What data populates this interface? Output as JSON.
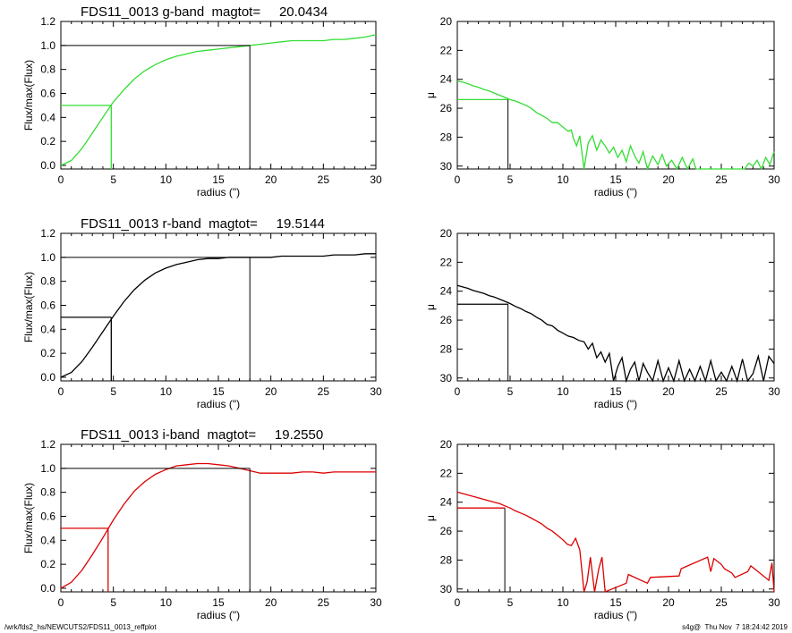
{
  "footer": {
    "path": "/wrk/fds2_hs/NEWCUTS2/FDS11_0013_reffplot",
    "stamp": "s4g@  Thu Nov  7 18:24:42 2019"
  },
  "chart_data": [
    {
      "type": "line",
      "title": "FDS11_0013 g-band  magtot=     20.0434",
      "xlabel": "radius (\")",
      "ylabel": "Flux/max(Flux)",
      "xlim": [
        0,
        30
      ],
      "ylim": [
        -0.03,
        1.2
      ],
      "xticks": [
        "0",
        "5",
        "10",
        "15",
        "20",
        "25",
        "30"
      ],
      "yticks": [
        "0.0",
        "0.2",
        "0.4",
        "0.6",
        "0.8",
        "1.0",
        "1.2"
      ],
      "color": "#33dd33",
      "reff": 4.8,
      "rtot": 18.0,
      "x": [
        0,
        1,
        2,
        3,
        4,
        5,
        6,
        7,
        8,
        9,
        10,
        11,
        12,
        13,
        14,
        15,
        16,
        17,
        18,
        19,
        20,
        21,
        22,
        23,
        24,
        25,
        26,
        27,
        28,
        29,
        30
      ],
      "y": [
        0.0,
        0.04,
        0.14,
        0.27,
        0.4,
        0.53,
        0.63,
        0.72,
        0.79,
        0.84,
        0.88,
        0.91,
        0.93,
        0.95,
        0.96,
        0.97,
        0.98,
        0.99,
        1.0,
        1.01,
        1.02,
        1.03,
        1.04,
        1.04,
        1.04,
        1.04,
        1.05,
        1.05,
        1.06,
        1.07,
        1.09
      ]
    },
    {
      "type": "line",
      "title": "",
      "xlabel": "radius (\")",
      "ylabel": "μ",
      "xlim": [
        0,
        30
      ],
      "ylim": [
        20,
        30.2
      ],
      "y_reversed": true,
      "xticks": [
        "0",
        "5",
        "10",
        "15",
        "20",
        "25",
        "30"
      ],
      "yticks": [
        "20",
        "22",
        "24",
        "26",
        "28",
        "30"
      ],
      "color": "#33dd33",
      "reff": 4.8,
      "mu_eff": 25.4,
      "x": [
        0,
        0.5,
        1,
        1.5,
        2,
        2.5,
        3,
        3.5,
        4,
        4.5,
        5,
        5.5,
        6,
        6.5,
        7,
        7.5,
        8,
        8.5,
        9,
        9.5,
        10,
        10.5,
        10.8,
        11,
        11.3,
        11.6,
        12,
        12.4,
        12.8,
        13.2,
        13.6,
        14,
        14.4,
        14.8,
        15.2,
        15.6,
        16,
        16.4,
        16.8,
        17.2,
        17.6,
        18,
        18.5,
        19,
        19.4,
        19.8,
        20.3,
        20.8,
        21.3,
        21.8,
        22.3,
        22.6,
        27.2,
        27.6,
        28,
        28.4,
        28.8,
        29.2,
        29.6,
        30
      ],
      "y": [
        24.1,
        24.2,
        24.3,
        24.45,
        24.55,
        24.7,
        24.8,
        24.95,
        25.1,
        25.25,
        25.4,
        25.5,
        25.65,
        25.8,
        26.0,
        26.3,
        26.5,
        26.7,
        27.0,
        27.0,
        27.3,
        27.6,
        27.5,
        28.1,
        28.6,
        27.9,
        30.2,
        28.4,
        27.9,
        28.9,
        28.2,
        28.6,
        29.1,
        28.7,
        29.4,
        28.9,
        29.7,
        28.6,
        29.3,
        29.8,
        29.0,
        30.2,
        29.3,
        29.9,
        29.2,
        30.0,
        29.6,
        30.2,
        29.4,
        30.2,
        29.5,
        30.2,
        30.2,
        29.8,
        30.0,
        29.6,
        30.2,
        29.4,
        29.9,
        29.0
      ]
    },
    {
      "type": "line",
      "title": "FDS11_0013 r-band  magtot=     19.5144",
      "xlabel": "radius (\")",
      "ylabel": "Flux/max(Flux)",
      "xlim": [
        0,
        30
      ],
      "ylim": [
        -0.03,
        1.2
      ],
      "xticks": [
        "0",
        "5",
        "10",
        "15",
        "20",
        "25",
        "30"
      ],
      "yticks": [
        "0.0",
        "0.2",
        "0.4",
        "0.6",
        "0.8",
        "1.0",
        "1.2"
      ],
      "color": "#000000",
      "reff": 4.8,
      "rtot": 18.0,
      "x": [
        0,
        1,
        2,
        3,
        4,
        5,
        6,
        7,
        8,
        9,
        10,
        11,
        12,
        13,
        14,
        15,
        16,
        17,
        18,
        19,
        20,
        21,
        22,
        23,
        24,
        25,
        26,
        27,
        28,
        29,
        30
      ],
      "y": [
        0.0,
        0.04,
        0.13,
        0.25,
        0.38,
        0.51,
        0.63,
        0.73,
        0.81,
        0.87,
        0.91,
        0.94,
        0.96,
        0.98,
        0.99,
        0.99,
        1.0,
        1.0,
        1.0,
        1.0,
        1.0,
        1.01,
        1.01,
        1.01,
        1.01,
        1.01,
        1.02,
        1.02,
        1.02,
        1.03,
        1.03
      ]
    },
    {
      "type": "line",
      "title": "",
      "xlabel": "radius (\")",
      "ylabel": "μ",
      "xlim": [
        0,
        30
      ],
      "ylim": [
        20,
        30.2
      ],
      "y_reversed": true,
      "xticks": [
        "0",
        "5",
        "10",
        "15",
        "20",
        "25",
        "30"
      ],
      "yticks": [
        "20",
        "22",
        "24",
        "26",
        "28",
        "30"
      ],
      "color": "#000000",
      "reff": 4.8,
      "mu_eff": 24.9,
      "x": [
        0,
        0.5,
        1,
        1.5,
        2,
        2.5,
        3,
        3.5,
        4,
        4.5,
        5,
        5.5,
        6,
        6.5,
        7,
        7.5,
        8,
        8.5,
        9,
        9.5,
        10,
        10.5,
        11,
        11.5,
        12,
        12.4,
        12.8,
        13.2,
        13.6,
        14,
        14.4,
        14.8,
        15.2,
        15.6,
        16,
        16.4,
        16.8,
        17.2,
        17.6,
        18,
        18.5,
        19,
        19.5,
        20,
        20.5,
        21,
        21.5,
        22,
        22.5,
        23,
        23.5,
        24,
        24.5,
        25,
        25.5,
        26,
        26.5,
        27,
        27.5,
        28,
        28.5,
        29,
        29.5,
        30
      ],
      "y": [
        23.6,
        23.7,
        23.8,
        23.95,
        24.05,
        24.15,
        24.3,
        24.4,
        24.55,
        24.7,
        24.85,
        25.05,
        25.2,
        25.4,
        25.55,
        25.8,
        26.0,
        26.3,
        26.4,
        26.7,
        26.9,
        27.1,
        27.2,
        27.4,
        27.5,
        28.0,
        27.6,
        28.6,
        28.2,
        28.9,
        28.3,
        30.2,
        29.2,
        28.6,
        30.2,
        29.4,
        28.9,
        30.2,
        29.0,
        29.6,
        30.2,
        28.8,
        30.2,
        29.3,
        30.2,
        28.8,
        30.2,
        29.4,
        30.2,
        29.2,
        30.2,
        28.8,
        30.2,
        29.6,
        30.2,
        29.2,
        30.2,
        28.7,
        30.2,
        29.7,
        28.5,
        30.2,
        28.5,
        29.0
      ]
    },
    {
      "type": "line",
      "title": "FDS11_0013 i-band  magtot=     19.2550",
      "xlabel": "radius (\")",
      "ylabel": "Flux/max(Flux)",
      "xlim": [
        0,
        30
      ],
      "ylim": [
        -0.03,
        1.2
      ],
      "xticks": [
        "0",
        "5",
        "10",
        "15",
        "20",
        "25",
        "30"
      ],
      "yticks": [
        "0.0",
        "0.2",
        "0.4",
        "0.6",
        "0.8",
        "1.0",
        "1.2"
      ],
      "color": "#dd0000",
      "reff": 4.5,
      "rtot": 18.0,
      "x": [
        0,
        1,
        2,
        3,
        4,
        5,
        6,
        7,
        8,
        9,
        10,
        11,
        12,
        13,
        14,
        15,
        16,
        17,
        18,
        19,
        20,
        21,
        22,
        23,
        24,
        25,
        26,
        27,
        28,
        29,
        30
      ],
      "y": [
        0.0,
        0.05,
        0.15,
        0.28,
        0.42,
        0.57,
        0.7,
        0.81,
        0.89,
        0.95,
        0.99,
        1.02,
        1.03,
        1.04,
        1.04,
        1.03,
        1.02,
        1.0,
        0.98,
        0.96,
        0.96,
        0.96,
        0.96,
        0.97,
        0.97,
        0.96,
        0.97,
        0.97,
        0.97,
        0.97,
        0.97
      ]
    },
    {
      "type": "line",
      "title": "",
      "xlabel": "radius (\")",
      "ylabel": "μ",
      "xlim": [
        0,
        30
      ],
      "ylim": [
        20,
        30.2
      ],
      "y_reversed": true,
      "xticks": [
        "0",
        "5",
        "10",
        "15",
        "20",
        "25",
        "30"
      ],
      "yticks": [
        "20",
        "22",
        "24",
        "26",
        "28",
        "30"
      ],
      "color": "#dd0000",
      "reff": 4.5,
      "mu_eff": 24.4,
      "x": [
        0,
        0.5,
        1,
        1.5,
        2,
        2.5,
        3,
        3.5,
        4,
        4.5,
        5,
        5.5,
        6,
        6.5,
        7,
        7.5,
        8,
        8.5,
        9,
        9.5,
        10,
        10.4,
        10.8,
        11.2,
        11.6,
        12,
        12.3,
        12.6,
        13,
        13.4,
        13.7,
        14,
        16,
        16.2,
        18,
        18.3,
        21,
        21.2,
        23.7,
        24,
        24.3,
        25,
        25.3,
        26,
        26.3,
        27.5,
        27.8,
        29.5,
        29.8,
        30
      ],
      "y": [
        23.3,
        23.4,
        23.5,
        23.6,
        23.7,
        23.8,
        23.9,
        24.0,
        24.1,
        24.25,
        24.4,
        24.6,
        24.75,
        24.9,
        25.1,
        25.3,
        25.5,
        25.8,
        26.0,
        26.3,
        26.6,
        26.9,
        27.0,
        26.5,
        27.3,
        30.2,
        29.5,
        27.8,
        30.2,
        28.6,
        27.8,
        30.2,
        29.6,
        29.0,
        29.6,
        29.2,
        29.1,
        28.6,
        27.8,
        28.8,
        27.9,
        28.3,
        28.6,
        28.9,
        29.2,
        28.8,
        28.4,
        29.4,
        28.2,
        30.2
      ]
    }
  ]
}
